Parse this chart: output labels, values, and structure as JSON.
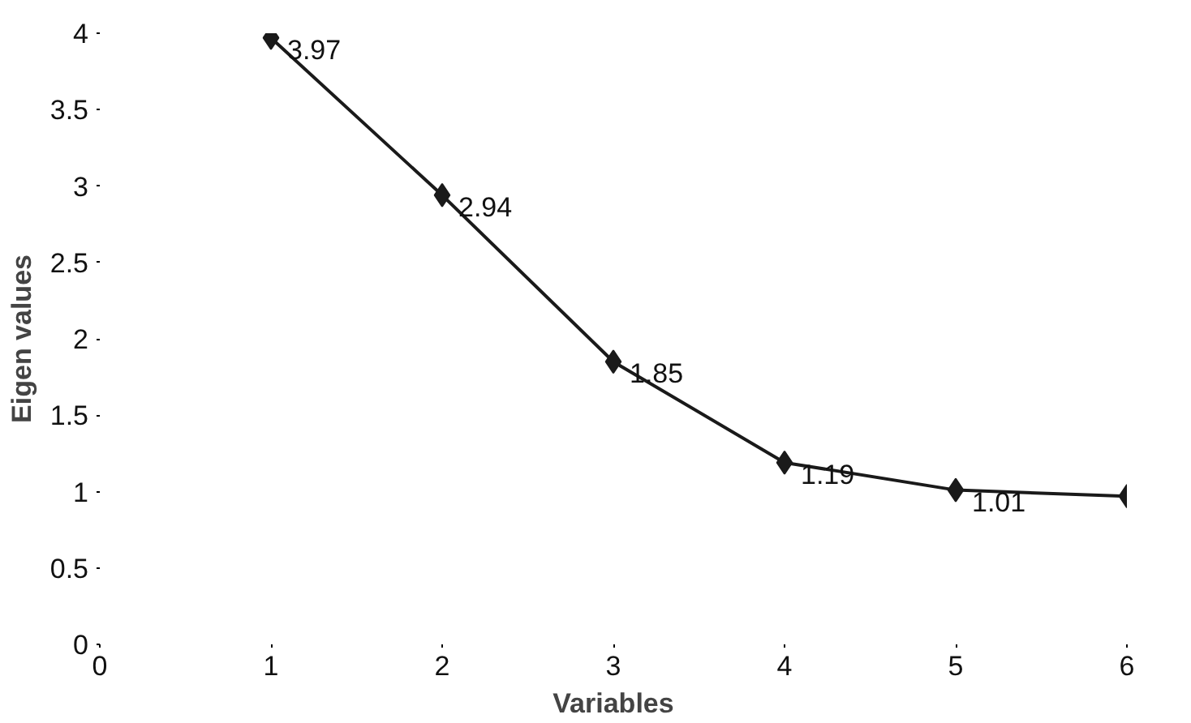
{
  "chart_data": {
    "type": "line",
    "xlabel": "Variables",
    "ylabel": "Eigen values",
    "x": [
      1,
      2,
      3,
      4,
      5,
      6
    ],
    "values": [
      3.97,
      2.94,
      1.85,
      1.19,
      1.01,
      0.97
    ],
    "value_labels": [
      "3.97",
      "2.94",
      "1.85",
      "1.19",
      "1.01",
      null
    ],
    "color": "#1a1a1a",
    "marker": "diamond",
    "line_style": "solid",
    "grid": false,
    "xlim": [
      0,
      6
    ],
    "xticks": [
      0,
      1,
      2,
      3,
      4,
      5,
      6
    ],
    "ylim": [
      0,
      4
    ],
    "yticks": [
      0,
      0.5,
      1,
      1.5,
      2,
      2.5,
      3,
      3.5,
      4
    ]
  }
}
